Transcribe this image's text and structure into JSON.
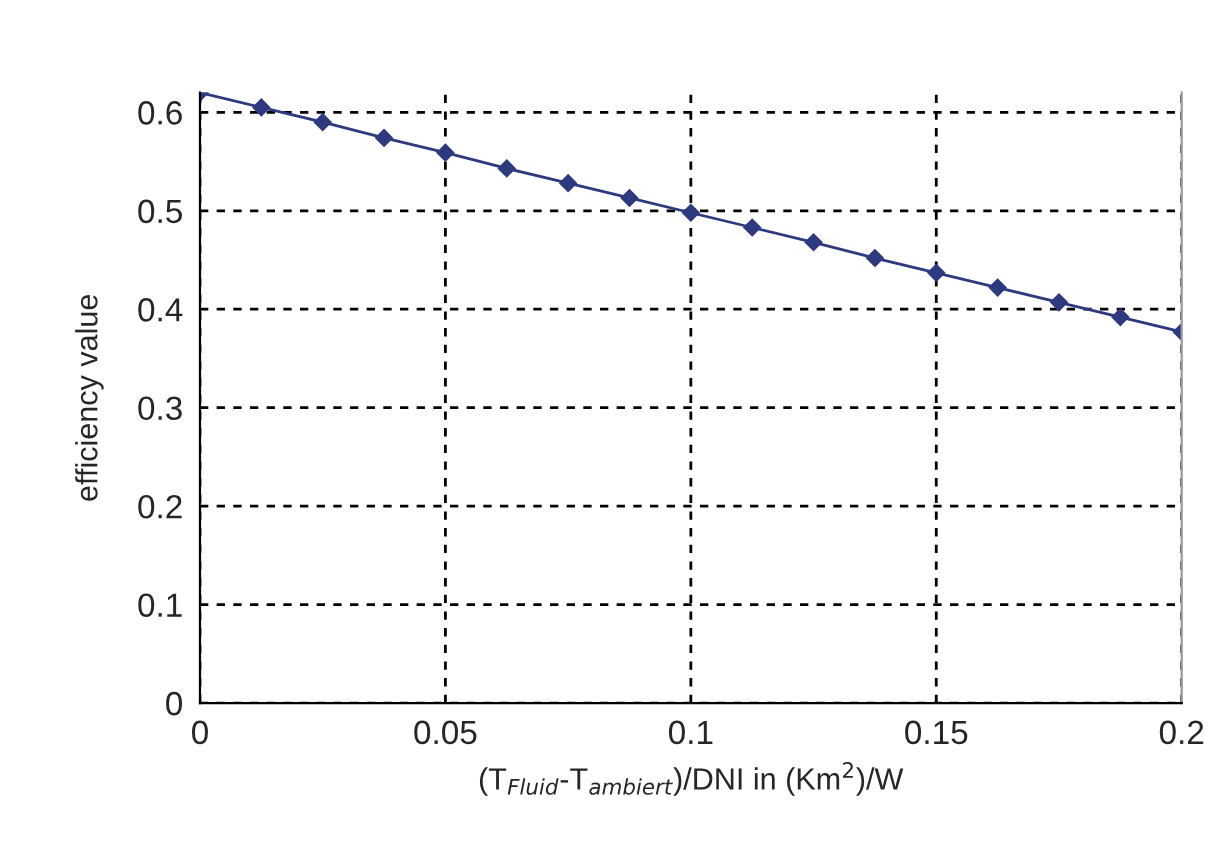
{
  "chart_data": {
    "type": "line",
    "xlabel": "(T$_{Fluid}$-T$_{ambiert}$)/DNI in (Km$^{2}$)/W",
    "ylabel": "efficiency value",
    "x": [
      0,
      0.0125,
      0.025,
      0.0375,
      0.05,
      0.0625,
      0.075,
      0.0875,
      0.1,
      0.1125,
      0.125,
      0.1375,
      0.15,
      0.1625,
      0.175,
      0.1875,
      0.2
    ],
    "series": [
      {
        "color": "#2e3a80",
        "values": [
          0.62,
          0.605,
          0.59,
          0.574,
          0.559,
          0.543,
          0.528,
          0.513,
          0.498,
          0.483,
          0.468,
          0.452,
          0.437,
          0.422,
          0.407,
          0.392,
          0.377
        ]
      }
    ],
    "xlim": [
      0,
      0.2
    ],
    "xticks": [
      {
        "value": 0,
        "label": "0"
      },
      0.05,
      0.1,
      0.15,
      0.2
    ],
    "ylim": [
      0,
      0.62
    ],
    "yticks": [
      {
        "value": 0,
        "label": "0"
      },
      0.1,
      0.2,
      0.3,
      0.4,
      0.5,
      0.6
    ],
    "grid": true,
    "marker": "diamond",
    "line_style": "solid"
  }
}
